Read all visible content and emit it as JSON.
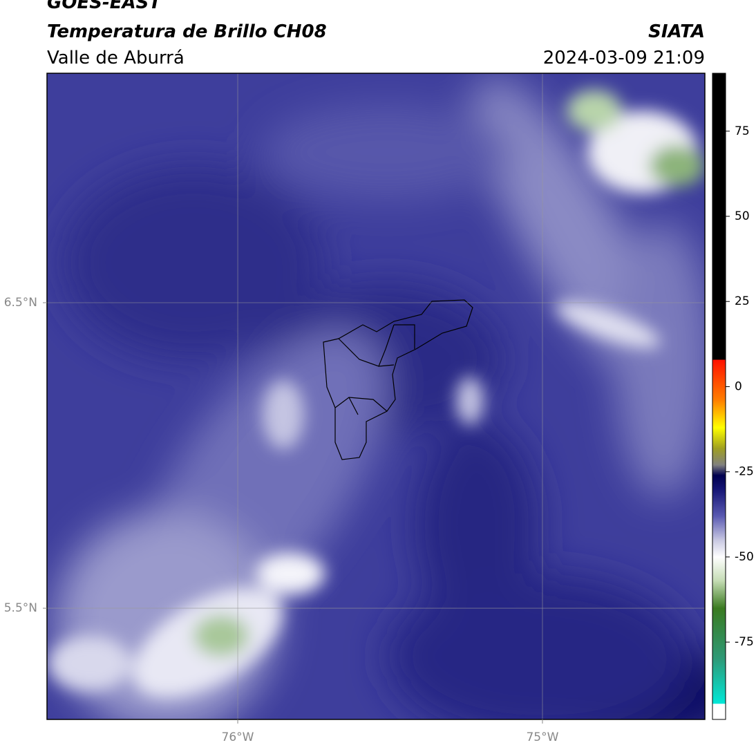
{
  "chart_data": {
    "type": "contour-map",
    "title": "GOES-EAST",
    "subtitle": "Temperatura de Brillo CH08",
    "region": "Valle de Aburrá",
    "source": "SIATA",
    "datetime": "2024-03-09 21:09",
    "xlim": [
      -76.626,
      -74.467
    ],
    "ylim": [
      5.136,
      7.251
    ],
    "xticks": [
      {
        "value": -76,
        "label": "76°W"
      },
      {
        "value": -75,
        "label": "75°W"
      }
    ],
    "yticks": [
      {
        "value": 5.5,
        "label": "5.5°N"
      },
      {
        "value": 6.5,
        "label": "6.5°N"
      }
    ],
    "grid": true,
    "colorbar": {
      "lim": [
        -97.7,
        92
      ],
      "ticks": [
        -75,
        -50,
        -25,
        0,
        25,
        50,
        75
      ],
      "stops": [
        {
          "value": -97.7,
          "color": "#ffffff"
        },
        {
          "value": -93,
          "color": "#ffffff"
        },
        {
          "value": -93,
          "color": "#00e8d8"
        },
        {
          "value": -80,
          "color": "#2e9a78"
        },
        {
          "value": -65,
          "color": "#3a7a20"
        },
        {
          "value": -57,
          "color": "#c4dcb4"
        },
        {
          "value": -50,
          "color": "#ffffff"
        },
        {
          "value": -45,
          "color": "#c8c8e2"
        },
        {
          "value": -38,
          "color": "#5a5ab2"
        },
        {
          "value": -30,
          "color": "#141474"
        },
        {
          "value": -26,
          "color": "#00004e"
        },
        {
          "value": -23,
          "color": "#808080"
        },
        {
          "value": -18,
          "color": "#a0a020"
        },
        {
          "value": -12,
          "color": "#ffff00"
        },
        {
          "value": -4,
          "color": "#ff8000"
        },
        {
          "value": 8,
          "color": "#ff1000"
        },
        {
          "value": 8,
          "color": "#000000"
        },
        {
          "value": 92,
          "color": "#000000"
        }
      ]
    }
  }
}
